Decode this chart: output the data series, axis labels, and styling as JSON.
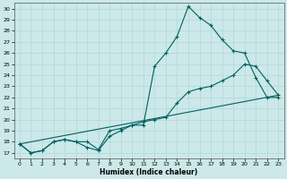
{
  "xlabel": "Humidex (Indice chaleur)",
  "background_color": "#cce8e8",
  "grid_color": "#b0d8d8",
  "line_color": "#006060",
  "xlim": [
    -0.5,
    23.5
  ],
  "ylim": [
    16.5,
    30.5
  ],
  "xticks": [
    0,
    1,
    2,
    3,
    4,
    5,
    6,
    7,
    8,
    9,
    10,
    11,
    12,
    13,
    14,
    15,
    16,
    17,
    18,
    19,
    20,
    21,
    22,
    23
  ],
  "yticks": [
    17,
    18,
    19,
    20,
    21,
    22,
    23,
    24,
    25,
    26,
    27,
    28,
    29,
    30
  ],
  "line1_x": [
    0,
    1,
    2,
    3,
    4,
    5,
    6,
    7,
    8,
    9,
    10,
    11,
    12,
    13,
    14,
    15,
    16,
    17,
    18,
    19,
    20,
    21,
    22,
    23
  ],
  "line1_y": [
    17.8,
    17.0,
    17.2,
    18.0,
    18.2,
    18.0,
    18.0,
    17.3,
    19.0,
    19.2,
    19.5,
    19.5,
    24.8,
    26.0,
    27.5,
    30.2,
    29.2,
    28.5,
    27.2,
    26.2,
    26.0,
    23.8,
    22.0,
    22.0
  ],
  "line2_x": [
    0,
    1,
    2,
    3,
    4,
    5,
    6,
    7,
    8,
    9,
    10,
    11,
    12,
    13,
    14,
    15,
    16,
    17,
    18,
    19,
    20,
    21,
    22,
    23
  ],
  "line2_y": [
    17.8,
    17.0,
    17.2,
    18.0,
    18.2,
    18.0,
    17.5,
    17.2,
    18.5,
    19.0,
    19.5,
    19.8,
    20.0,
    20.2,
    21.5,
    22.5,
    22.8,
    23.0,
    23.5,
    24.0,
    25.0,
    24.8,
    23.5,
    22.2
  ],
  "line3_x": [
    0,
    23
  ],
  "line3_y": [
    17.8,
    22.2
  ]
}
